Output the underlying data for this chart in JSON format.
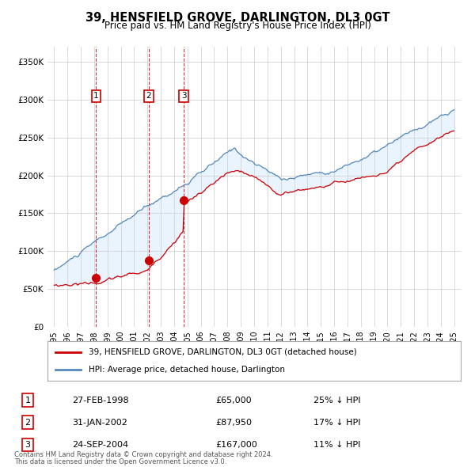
{
  "title": "39, HENSFIELD GROVE, DARLINGTON, DL3 0GT",
  "subtitle": "Price paid vs. HM Land Registry's House Price Index (HPI)",
  "legend_line1": "39, HENSFIELD GROVE, DARLINGTON, DL3 0GT (detached house)",
  "legend_line2": "HPI: Average price, detached house, Darlington",
  "sale_color": "#cc0000",
  "hpi_color": "#5588bb",
  "fill_color": "#ddeeff",
  "transactions": [
    {
      "label": "1",
      "date": "27-FEB-1998",
      "price": 65000,
      "pct": "25%",
      "direction": "↓",
      "x_year": 1998.15
    },
    {
      "label": "2",
      "date": "31-JAN-2002",
      "price": 87950,
      "pct": "17%",
      "direction": "↓",
      "x_year": 2002.08
    },
    {
      "label": "3",
      "date": "24-SEP-2004",
      "price": 167000,
      "pct": "11%",
      "direction": "↓",
      "x_year": 2004.73
    }
  ],
  "footer_line1": "Contains HM Land Registry data © Crown copyright and database right 2024.",
  "footer_line2": "This data is licensed under the Open Government Licence v3.0.",
  "ylim": [
    0,
    370000
  ],
  "yticks": [
    0,
    50000,
    100000,
    150000,
    200000,
    250000,
    300000,
    350000
  ],
  "xlim": [
    1994.5,
    2025.5
  ],
  "background_color": "#ffffff",
  "grid_color": "#cccccc",
  "hpi_seed": 10,
  "pp_seed": 20
}
